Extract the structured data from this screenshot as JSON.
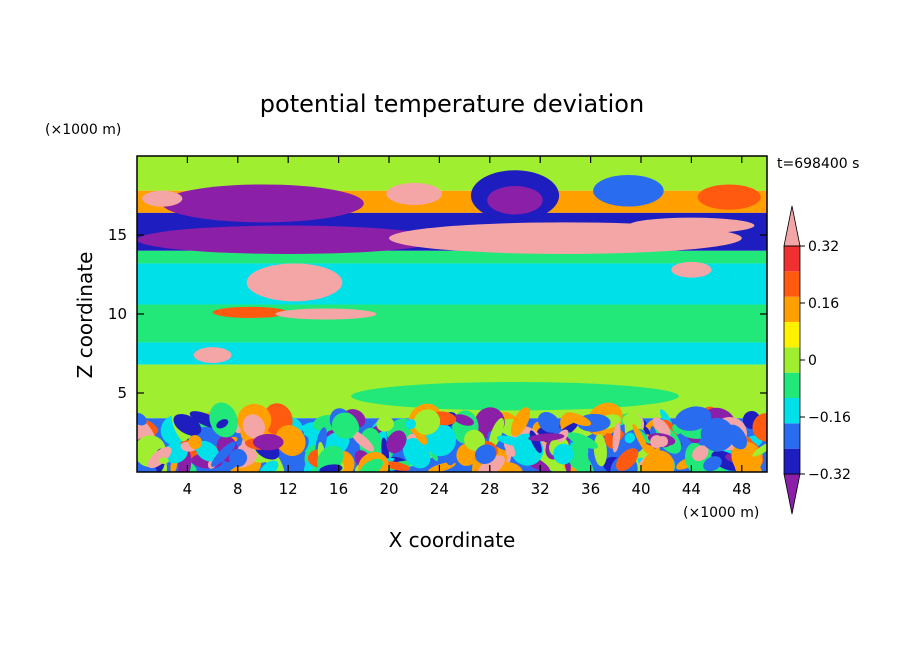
{
  "chart_data": {
    "type": "heatmap",
    "title": "potential temperature deviation",
    "xlabel": "X coordinate",
    "ylabel": "Z coordinate",
    "x_unit": "(×1000 m)",
    "y_unit": "(×1000 m)",
    "time_label": "t=698400 s",
    "xlim": [
      0,
      50
    ],
    "ylim": [
      0,
      20
    ],
    "x_ticks": [
      4,
      8,
      12,
      16,
      20,
      24,
      28,
      32,
      36,
      40,
      44,
      48
    ],
    "y_ticks": [
      5,
      10,
      15
    ],
    "colorbar": {
      "levels": [
        -0.4,
        -0.32,
        -0.24,
        -0.16,
        -0.08,
        0,
        0.08,
        0.16,
        0.24,
        0.32,
        0.4
      ],
      "tick_labels": [
        {
          "value": -0.32,
          "label": "−0.32"
        },
        {
          "value": -0.16,
          "label": "−0.16"
        },
        {
          "value": 0,
          "label": "0"
        },
        {
          "value": 0.16,
          "label": "0.16"
        },
        {
          "value": 0.32,
          "label": "0.32"
        }
      ],
      "band_colors": [
        "#8b1fa8",
        "#1e1ec0",
        "#2a6cf0",
        "#00e0e8",
        "#22e87a",
        "#a0ee30",
        "#fff200",
        "#ffa000",
        "#ff5a10",
        "#f03030",
        "#f4a6a6"
      ],
      "extend": "both"
    },
    "bands": [
      {
        "z": [
          17.8,
          20
        ],
        "color": "#a0ee30"
      },
      {
        "z": [
          16.4,
          17.8
        ],
        "color": "#ffa000"
      },
      {
        "z": [
          14.0,
          16.4
        ],
        "color": "#1e1ec0"
      },
      {
        "z": [
          13.2,
          14.0
        ],
        "color": "#22e87a"
      },
      {
        "z": [
          10.6,
          13.2
        ],
        "color": "#00e0e8"
      },
      {
        "z": [
          8.2,
          10.6
        ],
        "color": "#22e87a"
      },
      {
        "z": [
          6.8,
          8.2
        ],
        "color": "#00e0e8"
      },
      {
        "z": [
          3.4,
          6.8
        ],
        "color": "#a0ee30"
      },
      {
        "z": [
          0,
          3.4
        ],
        "color": "#2a6cf0"
      }
    ],
    "blobs": [
      {
        "x": 10,
        "z": 17.0,
        "rx": 8,
        "rz": 1.2,
        "color": "#8b1fa8"
      },
      {
        "x": 22,
        "z": 17.6,
        "rx": 2.2,
        "rz": 0.7,
        "color": "#f4a6a6"
      },
      {
        "x": 2,
        "z": 17.3,
        "rx": 1.6,
        "rz": 0.5,
        "color": "#f4a6a6"
      },
      {
        "x": 30,
        "z": 17.5,
        "rx": 3.5,
        "rz": 1.6,
        "color": "#1e1ec0"
      },
      {
        "x": 30,
        "z": 17.2,
        "rx": 2.2,
        "rz": 0.9,
        "color": "#8b1fa8"
      },
      {
        "x": 39,
        "z": 17.8,
        "rx": 2.8,
        "rz": 1.0,
        "color": "#2a6cf0"
      },
      {
        "x": 47,
        "z": 17.4,
        "rx": 2.5,
        "rz": 0.8,
        "color": "#ff5a10"
      },
      {
        "x": 12,
        "z": 14.7,
        "rx": 12,
        "rz": 0.9,
        "color": "#8b1fa8"
      },
      {
        "x": 34,
        "z": 14.8,
        "rx": 14,
        "rz": 1.0,
        "color": "#f4a6a6"
      },
      {
        "x": 44,
        "z": 15.6,
        "rx": 5,
        "rz": 0.5,
        "color": "#f4a6a6"
      },
      {
        "x": 12.5,
        "z": 12.0,
        "rx": 3.8,
        "rz": 1.2,
        "color": "#f4a6a6"
      },
      {
        "x": 9,
        "z": 10.1,
        "rx": 3,
        "rz": 0.35,
        "color": "#ff5a10"
      },
      {
        "x": 15,
        "z": 10.0,
        "rx": 4,
        "rz": 0.35,
        "color": "#f4a6a6"
      },
      {
        "x": 44,
        "z": 12.8,
        "rx": 1.6,
        "rz": 0.5,
        "color": "#f4a6a6"
      },
      {
        "x": 6,
        "z": 7.4,
        "rx": 1.5,
        "rz": 0.5,
        "color": "#f4a6a6"
      },
      {
        "x": 30,
        "z": 4.8,
        "rx": 13,
        "rz": 0.9,
        "color": "#22e87a"
      }
    ],
    "surface_layer": {
      "z_top": 3.4,
      "palette": [
        "#8b1fa8",
        "#1e1ec0",
        "#2a6cf0",
        "#00e0e8",
        "#22e87a",
        "#a0ee30",
        "#ffa000",
        "#ff5a10",
        "#f4a6a6"
      ]
    }
  }
}
